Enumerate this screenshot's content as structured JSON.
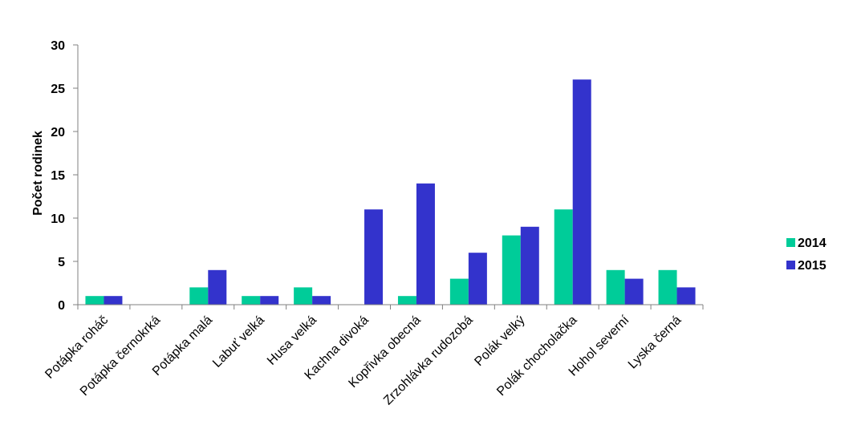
{
  "chart_data": {
    "type": "bar",
    "title": "",
    "xlabel": "",
    "ylabel": "Počet rodinek",
    "ylim": [
      0,
      30
    ],
    "yticks": [
      0,
      5,
      10,
      15,
      20,
      25,
      30
    ],
    "grid": false,
    "legend_position": "right",
    "categories": [
      "Potápka roháč",
      "Potápka černokrká",
      "Potápka malá",
      "Labuť velká",
      "Husa velká",
      "Kachna divoká",
      "Kopřivka obecná",
      "Zrzohlávka rudozobá",
      "Polák velký",
      "Polák chocholačka",
      "Hohol severní",
      "Lyska černá"
    ],
    "series": [
      {
        "name": "2014",
        "color": "#00CC99",
        "values": [
          1,
          0,
          2,
          1,
          2,
          0,
          1,
          3,
          8,
          11,
          4,
          4
        ]
      },
      {
        "name": "2015",
        "color": "#3333CC",
        "values": [
          1,
          0,
          4,
          1,
          1,
          11,
          14,
          6,
          9,
          26,
          3,
          2
        ]
      }
    ]
  }
}
